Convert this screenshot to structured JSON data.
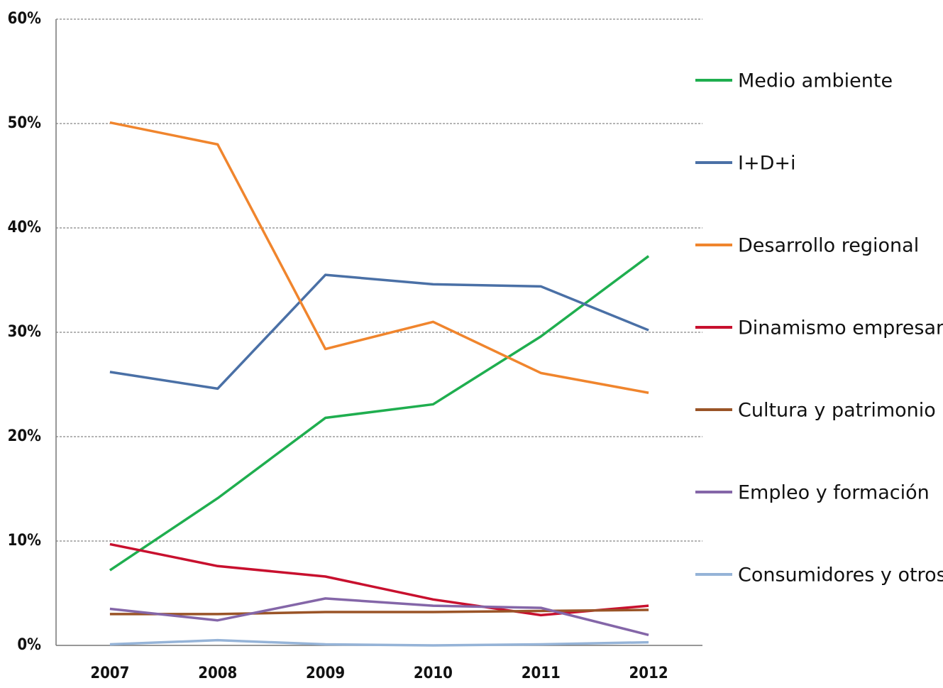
{
  "chart_data": {
    "type": "line",
    "categories": [
      "2007",
      "2008",
      "2009",
      "2010",
      "2011",
      "2012"
    ],
    "series": [
      {
        "name": "Medio ambiente",
        "color": "#1fae4f",
        "values": [
          7.2,
          14.1,
          21.8,
          23.1,
          29.6,
          37.3
        ]
      },
      {
        "name": "I+D+i",
        "color": "#4a70a6",
        "values": [
          26.2,
          24.6,
          35.5,
          34.6,
          34.4,
          30.2
        ]
      },
      {
        "name": "Desarrollo regional",
        "color": "#f0852d",
        "values": [
          50.1,
          48.0,
          28.4,
          31.0,
          26.1,
          24.2
        ]
      },
      {
        "name": "Dinamismo empresarial",
        "color": "#c8102e",
        "values": [
          9.7,
          7.6,
          6.6,
          4.4,
          2.9,
          3.8
        ]
      },
      {
        "name": "Cultura y patrimonio",
        "color": "#9a5427",
        "values": [
          3.0,
          3.0,
          3.2,
          3.2,
          3.3,
          3.4
        ]
      },
      {
        "name": "Empleo y formación",
        "color": "#8466a8",
        "values": [
          3.5,
          2.4,
          4.5,
          3.8,
          3.6,
          1.0
        ]
      },
      {
        "name": "Consumidores y otros",
        "color": "#95b3d7",
        "values": [
          0.1,
          0.5,
          0.1,
          0,
          0.1,
          0.3
        ]
      }
    ],
    "ylim": [
      0,
      60
    ],
    "yticks": [
      {
        "value": 0,
        "label": "0%"
      },
      {
        "value": 10,
        "label": "10%"
      },
      {
        "value": 20,
        "label": "20%"
      },
      {
        "value": 30,
        "label": "30%"
      },
      {
        "value": 40,
        "label": "40%"
      },
      {
        "value": 50,
        "label": "50%"
      },
      {
        "value": 60,
        "label": "60%"
      }
    ],
    "grid": true,
    "legend": "right"
  }
}
